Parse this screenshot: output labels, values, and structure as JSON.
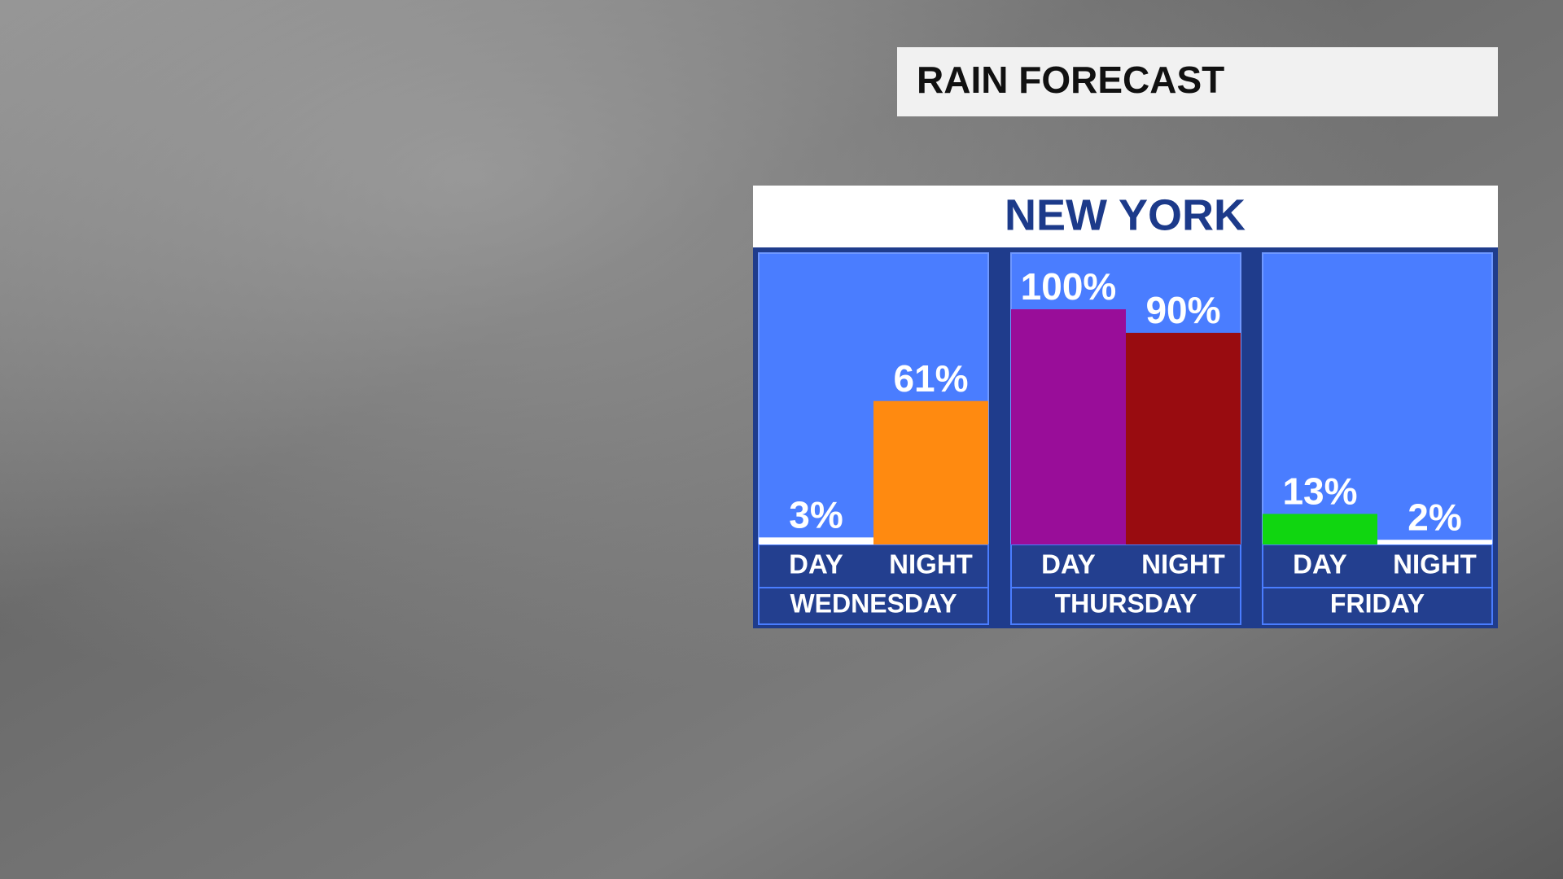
{
  "chart_data": {
    "type": "bar",
    "title": "RAIN FORECAST",
    "subtitle": "NEW YORK",
    "ylim": [
      0,
      100
    ],
    "groups": [
      {
        "name": "WEDNESDAY",
        "categories": [
          "DAY",
          "NIGHT"
        ],
        "values": [
          3,
          61
        ],
        "value_labels": [
          "3%",
          "61%"
        ],
        "colors": [
          "#ffffff",
          "#ff8a10"
        ]
      },
      {
        "name": "THURSDAY",
        "categories": [
          "DAY",
          "NIGHT"
        ],
        "values": [
          100,
          90
        ],
        "value_labels": [
          "100%",
          "90%"
        ],
        "colors": [
          "#990d99",
          "#990c10"
        ]
      },
      {
        "name": "FRIDAY",
        "categories": [
          "DAY",
          "NIGHT"
        ],
        "values": [
          13,
          2
        ],
        "value_labels": [
          "13%",
          "2%"
        ],
        "colors": [
          "#10d610",
          "#ffffff"
        ]
      }
    ]
  }
}
